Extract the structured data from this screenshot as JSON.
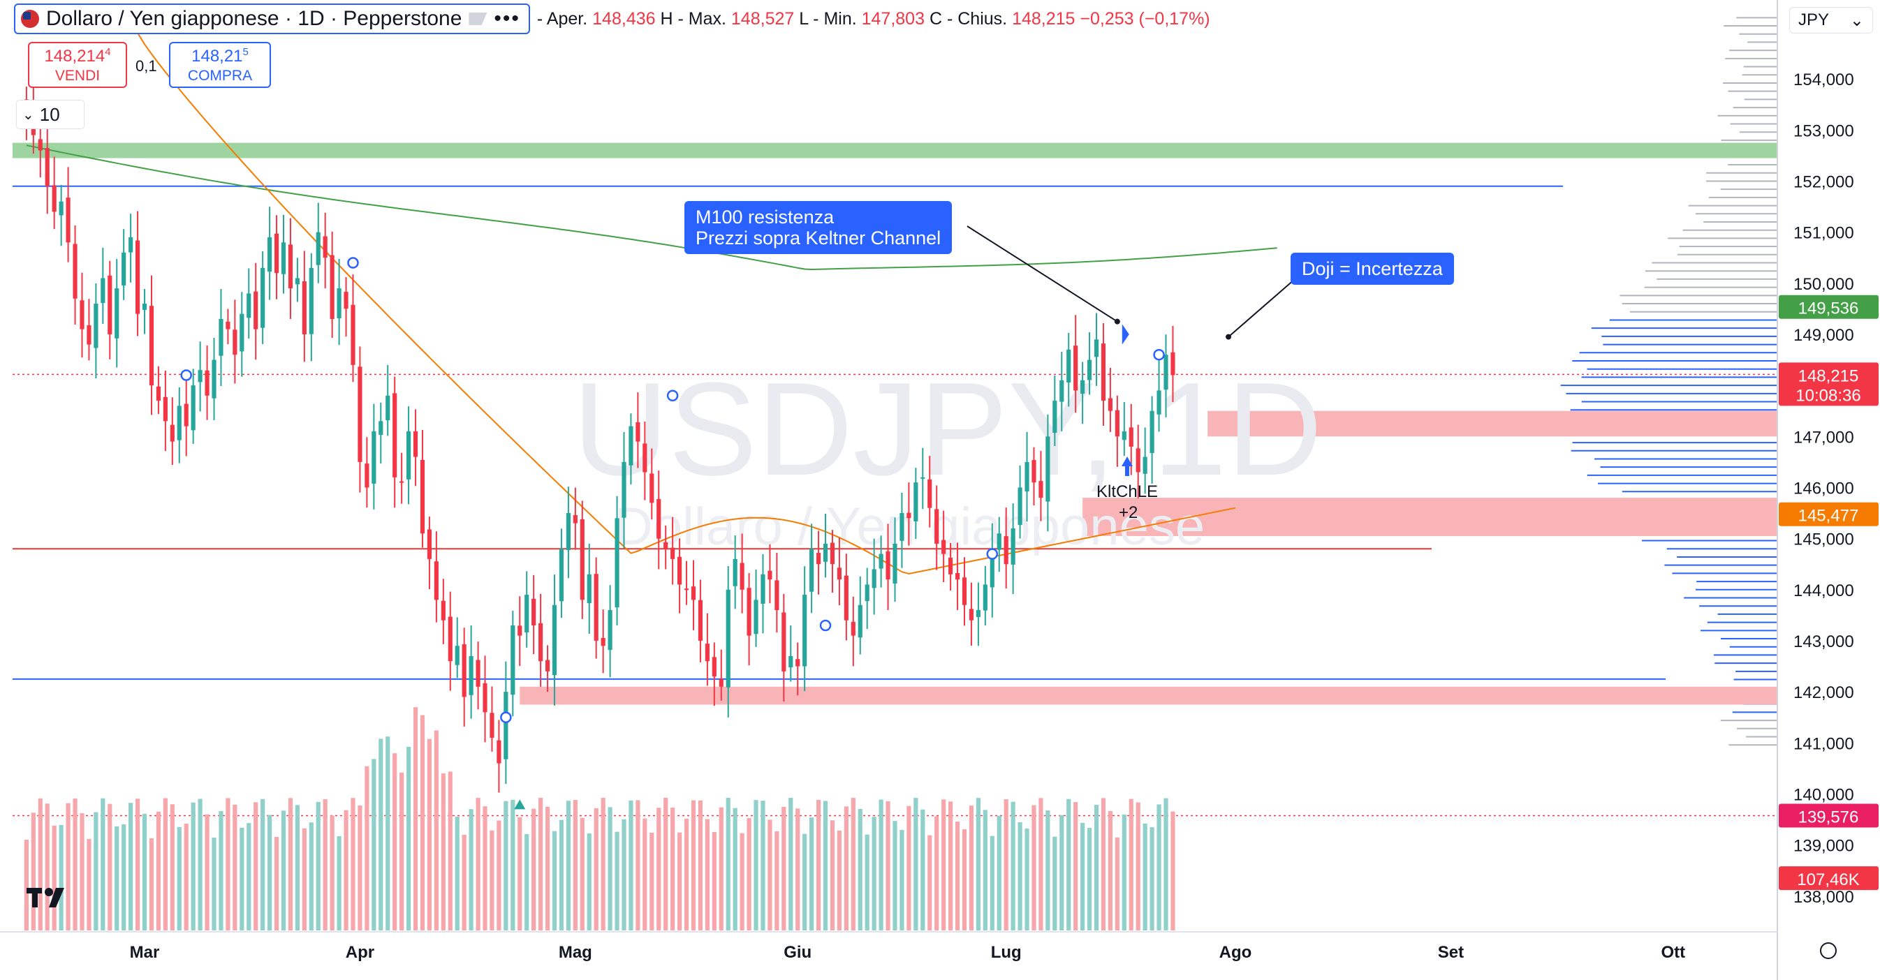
{
  "header": {
    "symbol_title": "Dollaro / Yen giapponese · 1D · Pepperstone",
    "open_label": "Aper.",
    "open": "148,436",
    "high_label": "Max.",
    "high": "148,527",
    "low_label": "Min.",
    "low": "147,803",
    "close_label": "Chius.",
    "close": "148,215",
    "change": "−0,253 (−0,17%)",
    "h": "H",
    "l": "L",
    "c": "C",
    "dash": "-",
    "more": "•••"
  },
  "trade": {
    "sell_price": "148,214",
    "sell_sup": "4",
    "sell_label": "VENDI",
    "buy_price": "148,21",
    "buy_sup": "5",
    "buy_label": "COMPRA",
    "spread": "0,1"
  },
  "volume_indicator": {
    "value": "10"
  },
  "currency": "JPY",
  "callouts": [
    {
      "lines": [
        "M100 resistenza",
        "Prezzi sopra Keltner Channel"
      ]
    },
    {
      "lines": [
        "Doji = Incertezza"
      ]
    }
  ],
  "signal": {
    "label": "KltChLE",
    "sub": "+2"
  },
  "watermark": {
    "symbol": "USDJPY, 1D",
    "name": "Dollaro / Yen giapponese"
  },
  "price_tags": {
    "last": "148,215",
    "countdown": "10:08:36",
    "ma100": "149,536",
    "ma_fast": "145,477",
    "volume_line": "139,576",
    "volume_last": "107,46K"
  },
  "colors": {
    "up": "#26a69a",
    "down": "#f23645",
    "up_vol": "#8fd0ca",
    "down_vol": "#f7a6ab",
    "ma100": "#43a047",
    "ma_fast": "#f57c00",
    "support_zone": "#f9b4b7",
    "resist_zone": "#9ed4a0",
    "hline_blue": "#2962ff",
    "hline_red": "#e53935",
    "profile": "#2962ff"
  },
  "chart_data": {
    "type": "candlestick",
    "y_ticks": [
      154000,
      153000,
      152000,
      151000,
      150000,
      149000,
      148000,
      147000,
      146000,
      145000,
      144000,
      143000,
      142000,
      141000,
      140000,
      139000,
      138000
    ],
    "y_tick_labels": [
      "154,000",
      "153,000",
      "152,000",
      "151,000",
      "150,000",
      "149,000",
      "148,000",
      "147,000",
      "146,000",
      "145,000",
      "144,000",
      "143,000",
      "142,000",
      "141,000",
      "140,000",
      "139,000",
      "138,000"
    ],
    "x_ticks": [
      {
        "label": "Mar",
        "index": 17
      },
      {
        "label": "Apr",
        "index": 48
      },
      {
        "label": "Mag",
        "index": 79
      },
      {
        "label": "Giu",
        "index": 111
      },
      {
        "label": "Lug",
        "index": 141
      },
      {
        "label": "Ago",
        "index": 174
      },
      {
        "label": "Set",
        "index": 205
      },
      {
        "label": "Ott",
        "index": 237
      }
    ],
    "ylim": [
      137300,
      155300
    ],
    "index_range": [
      -2,
      252
    ],
    "closes": [
      153.4,
      152.9,
      152.6,
      151.9,
      151.4,
      151.6,
      150.8,
      149.7,
      149.1,
      148.8,
      149.6,
      150.1,
      149.0,
      149.9,
      150.6,
      150.9,
      149.4,
      149.6,
      148.0,
      147.7,
      147.3,
      146.9,
      147.6,
      147.2,
      148.0,
      148.3,
      147.8,
      148.5,
      149.3,
      149.1,
      148.6,
      149.4,
      149.8,
      149.1,
      150.3,
      150.9,
      150.2,
      150.8,
      149.9,
      150.1,
      149.0,
      150.3,
      151.0,
      150.5,
      149.3,
      149.9,
      149.5,
      148.4,
      146.5,
      146.0,
      147.1,
      147.3,
      147.8,
      146.2,
      146.1,
      147.1,
      146.6,
      145.1,
      144.6,
      143.8,
      143.4,
      142.6,
      142.9,
      141.9,
      142.7,
      142.1,
      141.6,
      141.1,
      140.6,
      142.0,
      143.3,
      143.1,
      143.9,
      143.3,
      142.6,
      142.4,
      143.7,
      144.8,
      145.5,
      145.3,
      143.8,
      144.3,
      143.0,
      142.9,
      143.6,
      145.4,
      146.5,
      147.2,
      146.9,
      146.3,
      145.7,
      145.0,
      144.8,
      144.6,
      144.1,
      144.0,
      143.8,
      143.0,
      142.6,
      142.3,
      142.1,
      144.0,
      144.6,
      144.0,
      143.1,
      143.8,
      144.3,
      144.2,
      143.6,
      142.4,
      142.7,
      142.5,
      143.9,
      144.8,
      144.5,
      144.9,
      144.5,
      144.2,
      143.4,
      143.1,
      143.7,
      144.1,
      144.4,
      144.7,
      144.2,
      144.9,
      145.5,
      145.4,
      146.1,
      146.2,
      145.6,
      144.9,
      144.7,
      144.3,
      144.2,
      143.7,
      143.4,
      143.6,
      144.1,
      144.7,
      145.1,
      144.5,
      145.2,
      146.0,
      146.5,
      146.1,
      145.8,
      147.0,
      147.7,
      148.1,
      148.7,
      147.9,
      148.1,
      148.5,
      148.9,
      147.7,
      147.5,
      147.0,
      147.1,
      146.8,
      146.3,
      146.6,
      147.5,
      147.9,
      148.6,
      148.2
    ]
  }
}
